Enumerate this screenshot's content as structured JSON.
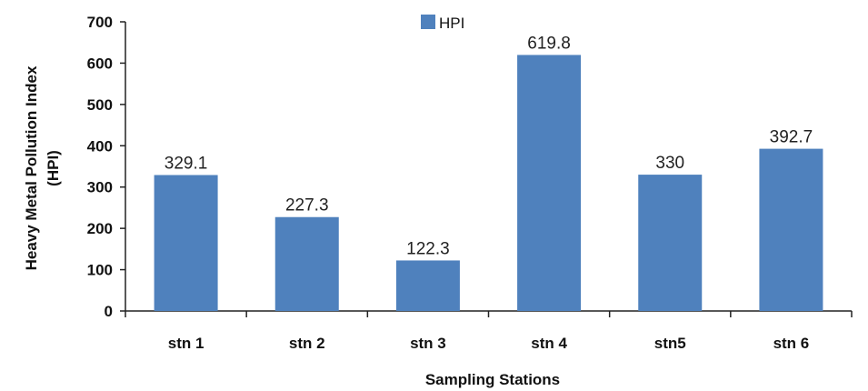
{
  "chart_data": {
    "type": "bar",
    "categories": [
      "stn 1",
      "stn 2",
      "stn 3",
      "stn 4",
      "stn5",
      "stn 6"
    ],
    "series": [
      {
        "name": "HPI",
        "values": [
          329.1,
          227.3,
          122.3,
          619.8,
          330,
          392.7
        ]
      }
    ],
    "data_labels": [
      "329.1",
      "227.3",
      "122.3",
      "619.8",
      "330",
      "392.7"
    ],
    "xlabel": "Sampling Stations",
    "ylabel_lines": [
      "Heavy Metal Pollution Index",
      "(HPI)"
    ],
    "ylim": [
      0,
      700
    ],
    "yticks": [
      0,
      100,
      200,
      300,
      400,
      500,
      600,
      700
    ],
    "grid": false,
    "legend_position": "top-center",
    "bar_color": "#4f81bd"
  }
}
